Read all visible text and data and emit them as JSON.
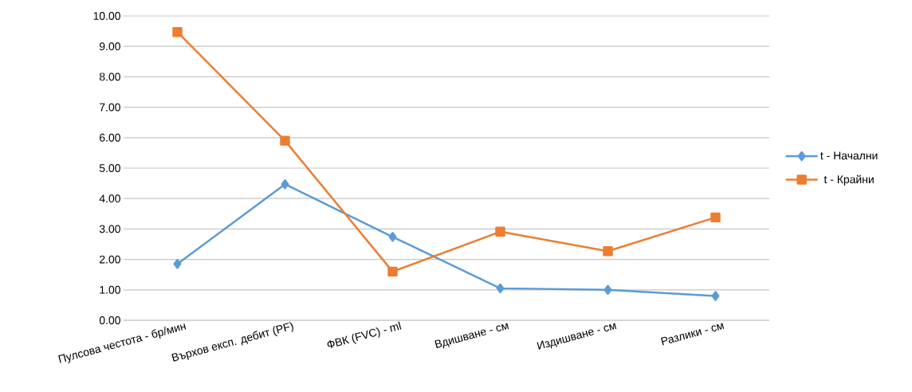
{
  "chart_data": {
    "type": "line",
    "categories": [
      "Пулсова честота - бр/мин",
      "Върхов експ. дебит (PF)",
      "ФВК (FVC) - ml",
      "Вдишване - см",
      "Издишване - см",
      "Разлики - см"
    ],
    "series": [
      {
        "name": "t - Начални",
        "color": "#5b9bd5",
        "marker": "diamond",
        "values": [
          1.85,
          4.47,
          2.74,
          1.05,
          1.0,
          0.8
        ]
      },
      {
        "name": "t - Крайни",
        "color": "#ed7d31",
        "marker": "square",
        "values": [
          9.47,
          5.9,
          1.6,
          2.91,
          2.27,
          3.38
        ]
      }
    ],
    "ylim": [
      0,
      10
    ],
    "yticks": [
      {
        "value": 0,
        "label": "0.00"
      },
      {
        "value": 1,
        "label": "1.00"
      },
      {
        "value": 2,
        "label": "2.00"
      },
      {
        "value": 3,
        "label": "3.00"
      },
      {
        "value": 4,
        "label": "4.00"
      },
      {
        "value": 5,
        "label": "5.00"
      },
      {
        "value": 6,
        "label": "6.00"
      },
      {
        "value": 7,
        "label": "7.00"
      },
      {
        "value": 8,
        "label": "8.00"
      },
      {
        "value": 9,
        "label": "9.00"
      },
      {
        "value": 10,
        "label": "10.00"
      }
    ],
    "grid": "y",
    "legend": "right",
    "line_style": "solid"
  }
}
